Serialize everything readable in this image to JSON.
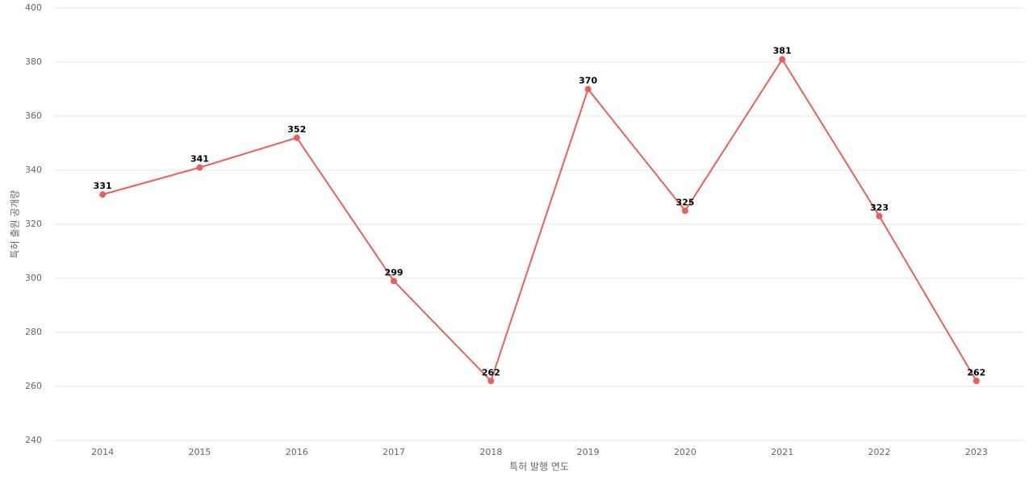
{
  "chart_data": {
    "type": "line",
    "x_label": "특허 발행 연도",
    "y_label": "특허 출원 공개량",
    "categories": [
      "2014",
      "2015",
      "2016",
      "2017",
      "2018",
      "2019",
      "2020",
      "2021",
      "2022",
      "2023"
    ],
    "series": [
      {
        "name": "특허 출원 공개량",
        "color": "#e8605c",
        "values": [
          331,
          341,
          352,
          299,
          262,
          370,
          325,
          381,
          323,
          262
        ]
      }
    ],
    "ylim": [
      240,
      400
    ],
    "yticks": [
      240,
      260,
      280,
      300,
      320,
      340,
      360,
      380,
      400
    ],
    "grid": true,
    "data_labels": true
  }
}
